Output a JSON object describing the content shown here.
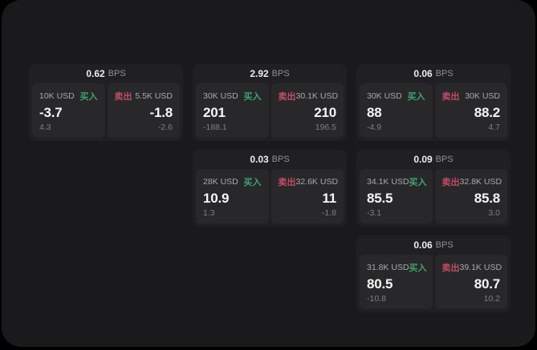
{
  "labels": {
    "buy": "买入",
    "sell": "卖出",
    "unit": "BPS"
  },
  "colors": {
    "buy": "#3fa36d",
    "sell": "#c24d63"
  },
  "cards": [
    {
      "bps": "0.62",
      "buy": {
        "amount": "10K USD",
        "price": "-3.7",
        "delta": "4.3"
      },
      "sell": {
        "amount": "5.5K USD",
        "price": "-1.8",
        "delta": "-2.6"
      }
    },
    {
      "bps": "2.92",
      "buy": {
        "amount": "30K USD",
        "price": "201",
        "delta": "-188.1"
      },
      "sell": {
        "amount": "30.1K USD",
        "price": "210",
        "delta": "196.5"
      }
    },
    {
      "bps": "0.06",
      "buy": {
        "amount": "30K USD",
        "price": "88",
        "delta": "-4.9"
      },
      "sell": {
        "amount": "30K USD",
        "price": "88.2",
        "delta": "4.7"
      }
    },
    {
      "bps": "0.03",
      "buy": {
        "amount": "28K USD",
        "price": "10.9",
        "delta": "1.3"
      },
      "sell": {
        "amount": "32.6K USD",
        "price": "11",
        "delta": "-1.8"
      }
    },
    {
      "bps": "0.09",
      "buy": {
        "amount": "34.1K USD",
        "price": "85.5",
        "delta": "-3.1"
      },
      "sell": {
        "amount": "32.8K USD",
        "price": "85.8",
        "delta": "3.0"
      }
    },
    {
      "bps": "0.06",
      "buy": {
        "amount": "31.8K USD",
        "price": "80.5",
        "delta": "-10.8"
      },
      "sell": {
        "amount": "39.1K USD",
        "price": "80.7",
        "delta": "10.2"
      }
    }
  ]
}
